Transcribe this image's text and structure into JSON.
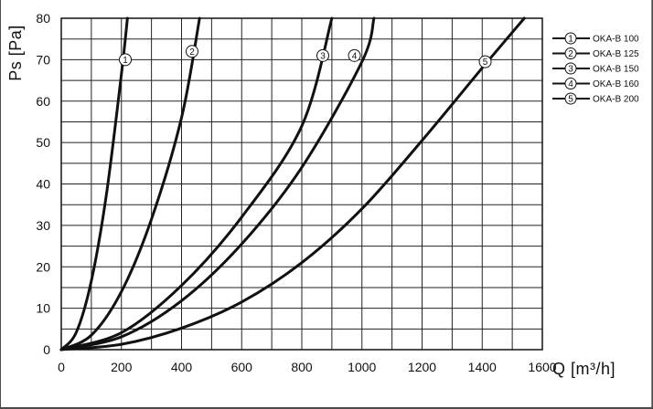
{
  "chart_data": {
    "type": "line",
    "xlabel": "Q [m³/h]",
    "ylabel": "Ps [Pa]",
    "xlim": [
      0,
      1600
    ],
    "ylim": [
      0,
      80
    ],
    "x_ticks": [
      0,
      200,
      400,
      600,
      800,
      1000,
      1200,
      1400,
      1600
    ],
    "y_ticks": [
      0,
      10,
      20,
      30,
      40,
      50,
      60,
      70,
      80
    ],
    "x_minor_step": 100,
    "y_minor_step": 5,
    "grid": true,
    "legend_position": "top-right",
    "line_color": "#111111",
    "series": [
      {
        "marker": "1",
        "name": "OKA-B 100",
        "x": [
          0,
          50,
          100,
          150,
          200,
          220
        ],
        "y": [
          0,
          4.2,
          16.6,
          37.4,
          66.5,
          80
        ],
        "label_at": [
          213,
          70
        ]
      },
      {
        "marker": "2",
        "name": "OKA-B 125",
        "x": [
          0,
          100,
          200,
          300,
          400,
          460
        ],
        "y": [
          0,
          3.5,
          14.0,
          31.5,
          56.0,
          80
        ],
        "label_at": [
          435,
          72
        ]
      },
      {
        "marker": "3",
        "name": "OKA-B 150",
        "x": [
          0,
          200,
          400,
          600,
          800,
          900
        ],
        "y": [
          0,
          4.1,
          15.5,
          32.0,
          54.0,
          80
        ],
        "label_at": [
          870,
          71
        ]
      },
      {
        "marker": "4",
        "name": "OKA-B 160",
        "x": [
          0,
          200,
          400,
          600,
          800,
          1000,
          1040
        ],
        "y": [
          0,
          3.1,
          11.8,
          25.5,
          44.0,
          69.5,
          80
        ],
        "label_at": [
          975,
          71
        ]
      },
      {
        "marker": "5",
        "name": "OKA-B 200",
        "x": [
          0,
          200,
          400,
          600,
          800,
          1000,
          1200,
          1400,
          1540
        ],
        "y": [
          0,
          1.3,
          5.2,
          11.5,
          21.0,
          34.0,
          50.5,
          68.0,
          80
        ],
        "label_at": [
          1410,
          69.5
        ]
      }
    ]
  }
}
